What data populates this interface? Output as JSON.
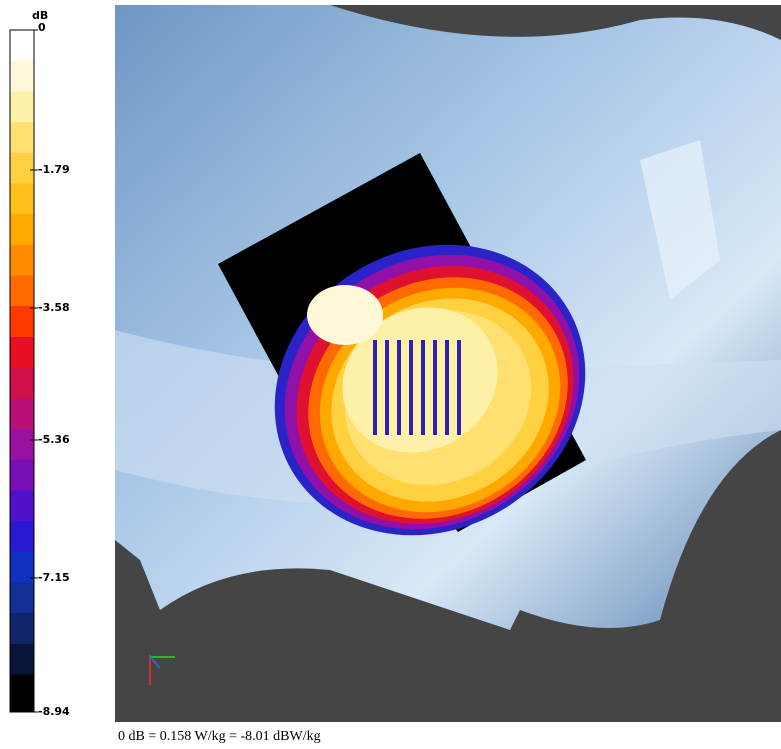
{
  "colorbar": {
    "unit": "dB",
    "ticks": [
      "0",
      "-1.79",
      "-3.58",
      "-5.36",
      "-7.15",
      "-8.94"
    ]
  },
  "caption": "0 dB = 0.158 W/kg = -8.01 dBW/kg"
}
